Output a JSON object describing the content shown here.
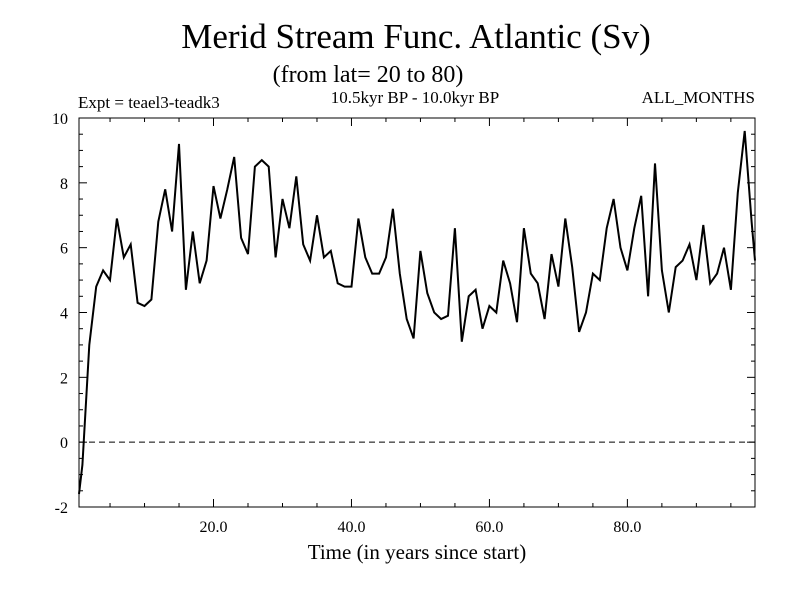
{
  "chart_data": {
    "type": "line",
    "title": "Merid Stream Func. Atlantic (Sv)",
    "subtitle": "(from lat= 20 to 80)",
    "experiment": "Expt = teael3-teadk3",
    "period": "10.5kyr BP - 10.0kyr BP",
    "months": "ALL_MONTHS",
    "xlabel": "Time (in years since start)",
    "ylabel": "",
    "xlim": [
      0.5,
      98.5
    ],
    "ylim": [
      -2,
      10
    ],
    "x_ticks": [
      20,
      40,
      60,
      80
    ],
    "x_tick_labels": [
      "20.0",
      "40.0",
      "60.0",
      "80.0"
    ],
    "y_ticks": [
      -2,
      0,
      2,
      4,
      6,
      8,
      10
    ],
    "y_tick_labels": [
      "-2",
      "0",
      "2",
      "4",
      "6",
      "8",
      "10"
    ],
    "reference_line": 0,
    "line_color": "#000000",
    "series": [
      {
        "name": "Merid Stream Func. Atlantic",
        "x": [
          0.5,
          1,
          2,
          3,
          4,
          5,
          6,
          7,
          8,
          9,
          10,
          11,
          12,
          13,
          14,
          15,
          16,
          17,
          18,
          19,
          20,
          21,
          22,
          23,
          24,
          25,
          26,
          27,
          28,
          29,
          30,
          31,
          32,
          33,
          34,
          35,
          36,
          37,
          38,
          39,
          40,
          41,
          42,
          43,
          44,
          45,
          46,
          47,
          48,
          49,
          50,
          51,
          52,
          53,
          54,
          55,
          56,
          57,
          58,
          59,
          60,
          61,
          62,
          63,
          64,
          65,
          66,
          67,
          68,
          69,
          70,
          71,
          72,
          73,
          74,
          75,
          76,
          77,
          78,
          79,
          80,
          81,
          82,
          83,
          84,
          85,
          86,
          87,
          88,
          89,
          90,
          91,
          92,
          93,
          94,
          95,
          96,
          97,
          98,
          98.5
        ],
        "values": [
          -1.6,
          -0.7,
          3.0,
          4.8,
          5.3,
          5.0,
          6.9,
          5.7,
          6.1,
          4.3,
          4.2,
          4.4,
          6.8,
          7.8,
          6.5,
          9.2,
          4.7,
          6.5,
          4.9,
          5.6,
          7.9,
          6.9,
          7.8,
          8.8,
          6.3,
          5.8,
          8.5,
          8.7,
          8.5,
          5.7,
          7.5,
          6.6,
          8.2,
          6.1,
          5.6,
          7.0,
          5.7,
          5.9,
          4.9,
          4.8,
          4.8,
          6.9,
          5.7,
          5.2,
          5.2,
          5.7,
          7.2,
          5.2,
          3.8,
          3.2,
          5.9,
          4.6,
          4.0,
          3.8,
          3.9,
          6.6,
          3.1,
          4.5,
          4.7,
          3.5,
          4.2,
          4.0,
          5.6,
          4.9,
          3.7,
          6.6,
          5.2,
          4.9,
          3.8,
          5.8,
          4.8,
          6.9,
          5.4,
          3.4,
          4.0,
          5.2,
          5.0,
          6.6,
          7.5,
          6.0,
          5.3,
          6.6,
          7.6,
          4.5,
          8.6,
          5.3,
          4.0,
          5.4,
          5.6,
          6.1,
          5.0,
          6.7,
          4.9,
          5.2,
          6.0,
          4.7,
          7.7,
          9.6,
          6.8,
          5.6
        ]
      }
    ]
  }
}
